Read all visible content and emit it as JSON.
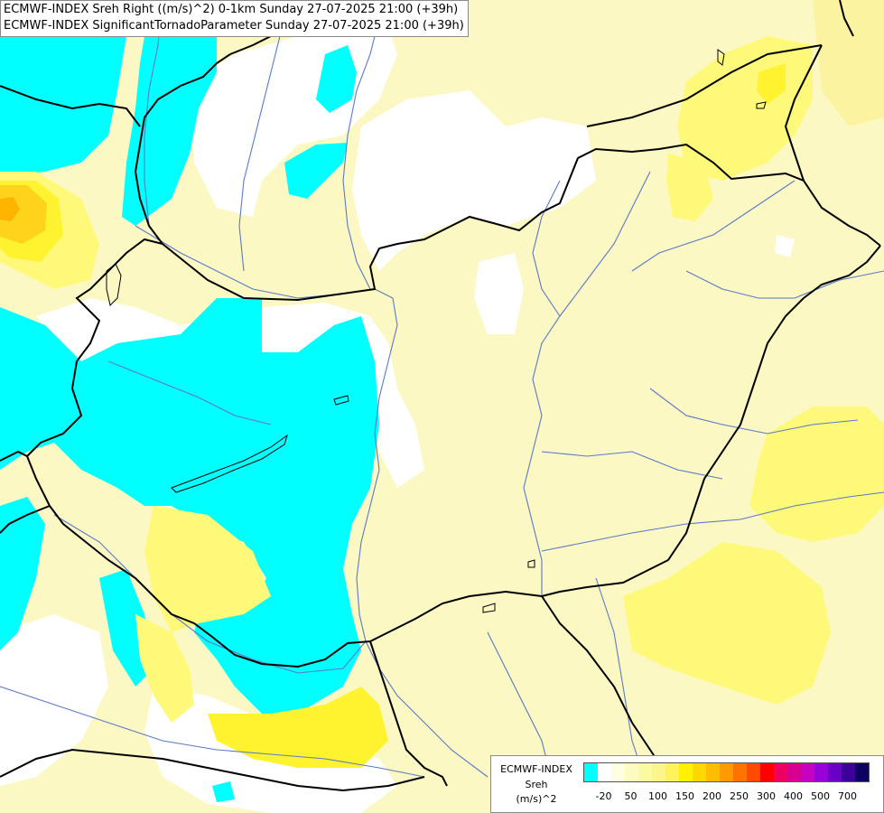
{
  "header": {
    "line1": "ECMWF-INDEX Sreh Right ((m/s)^2) 0-1km Sunday 27-07-2025 21:00 (+39h)",
    "line2": "ECMWF-INDEX SignificantTornadoParameter Sunday 27-07-2025 21:00 (+39h)"
  },
  "legend": {
    "line1": "ECMWF-INDEX",
    "line2": "Sreh",
    "line3": "(m/s)^2",
    "swatch_colors": [
      "#00ffff",
      "#ffffff",
      "#fefee0",
      "#fcfcc0",
      "#fafaa0",
      "#fbf68a",
      "#fff25a",
      "#fff200",
      "#ffd800",
      "#ffbc00",
      "#ff9a00",
      "#ff7400",
      "#ff4a00",
      "#ff0000",
      "#ef0060",
      "#d8008e",
      "#c800c0",
      "#9a00d8",
      "#6a00c8",
      "#3c0098",
      "#0c0060"
    ],
    "ticks": [
      "-20",
      "50",
      "100",
      "150",
      "200",
      "250",
      "300",
      "400",
      "500",
      "700"
    ]
  },
  "colors": {
    "cyan": "#00ffff",
    "white": "#ffffff",
    "pale_yellow": "#fbf8c4",
    "light_yellow": "#fbf3a0",
    "yellow": "#fff97a",
    "bright_yellow": "#fff22e",
    "orange": "#ffd21c",
    "deep_orange": "#ffb400",
    "border": "#000000",
    "river": "#5b79c7"
  }
}
